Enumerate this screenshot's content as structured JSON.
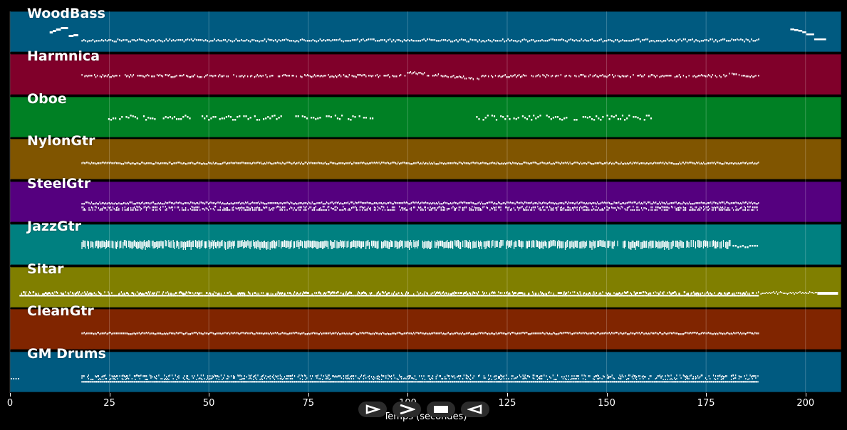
{
  "axis": {
    "title": "Temps (secondes)",
    "ticks": [
      "0",
      "25",
      "50",
      "75",
      "100",
      "125",
      "150",
      "175",
      "200"
    ],
    "tick_values": [
      0,
      25,
      50,
      75,
      100,
      125,
      150,
      175,
      200
    ],
    "range": [
      0,
      209
    ]
  },
  "tracks": [
    {
      "name": "WoodBass",
      "color": "#005a80",
      "start": 4.5,
      "end": 188,
      "pattern": "bass"
    },
    {
      "name": "Harmnica",
      "color": "#80002a",
      "start": 18,
      "end": 188,
      "pattern": "melody"
    },
    {
      "name": "Oboe",
      "color": "#008024",
      "start": 25,
      "end": 161,
      "pattern": "oboe"
    },
    {
      "name": "NylonGtr",
      "color": "#805500",
      "start": 18,
      "end": 188,
      "pattern": "line"
    },
    {
      "name": "SteelGtr",
      "color": "#55007f",
      "start": 18,
      "end": 188,
      "pattern": "dense"
    },
    {
      "name": "JazzGtr",
      "color": "#008080",
      "start": 18,
      "end": 188,
      "pattern": "chords"
    },
    {
      "name": "Sitar",
      "color": "#807f00",
      "start": 2,
      "end": 208,
      "pattern": "sitar"
    },
    {
      "name": "CleanGtr",
      "color": "#802500",
      "start": 18,
      "end": 188,
      "pattern": "line"
    },
    {
      "name": "GM Drums",
      "color": "#005a80",
      "start": 0,
      "end": 188,
      "pattern": "drums"
    }
  ],
  "controls": [
    {
      "name": "play-icon",
      "glyph": "▷"
    },
    {
      "name": "forward-icon",
      "glyph": ">"
    },
    {
      "name": "stop-icon",
      "glyph": "■"
    },
    {
      "name": "back-icon",
      "glyph": "◁"
    }
  ],
  "colors": {
    "background": "#000000",
    "note": "#ffffff",
    "grid": "rgba(255,255,255,0.22)"
  }
}
